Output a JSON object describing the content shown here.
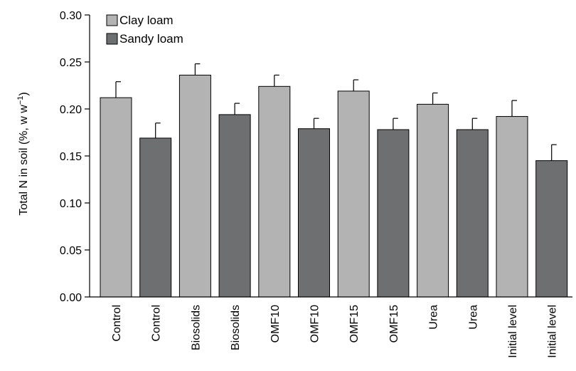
{
  "chart_data": {
    "type": "bar",
    "ylabel": "Total N in soil (%, w w",
    "ylabel_sup": "−1",
    "ylabel_close": ")",
    "ylim": [
      0,
      0.3
    ],
    "yticks": [
      "0.00",
      "0.05",
      "0.10",
      "0.15",
      "0.20",
      "0.25",
      "0.30"
    ],
    "legend": {
      "placement": "top-left",
      "entries": [
        {
          "name": "Clay loam",
          "color": "#b3b3b3"
        },
        {
          "name": "Sandy loam",
          "color": "#6e6f71"
        }
      ]
    },
    "bars": [
      {
        "category": "Control",
        "series": "Clay loam",
        "value": 0.212,
        "error": 0.017
      },
      {
        "category": "Control",
        "series": "Sandy loam",
        "value": 0.169,
        "error": 0.016
      },
      {
        "category": "Biosolids",
        "series": "Clay loam",
        "value": 0.236,
        "error": 0.012
      },
      {
        "category": "Biosolids",
        "series": "Sandy loam",
        "value": 0.194,
        "error": 0.012
      },
      {
        "category": "OMF10",
        "series": "Clay loam",
        "value": 0.224,
        "error": 0.012
      },
      {
        "category": "OMF10",
        "series": "Sandy loam",
        "value": 0.179,
        "error": 0.011
      },
      {
        "category": "OMF15",
        "series": "Clay loam",
        "value": 0.219,
        "error": 0.012
      },
      {
        "category": "OMF15",
        "series": "Sandy loam",
        "value": 0.178,
        "error": 0.012
      },
      {
        "category": "Urea",
        "series": "Clay loam",
        "value": 0.205,
        "error": 0.012
      },
      {
        "category": "Urea",
        "series": "Sandy loam",
        "value": 0.178,
        "error": 0.012
      },
      {
        "category": "Initial level",
        "series": "Clay loam",
        "value": 0.192,
        "error": 0.017
      },
      {
        "category": "Initial level",
        "series": "Sandy loam",
        "value": 0.145,
        "error": 0.017
      }
    ]
  }
}
